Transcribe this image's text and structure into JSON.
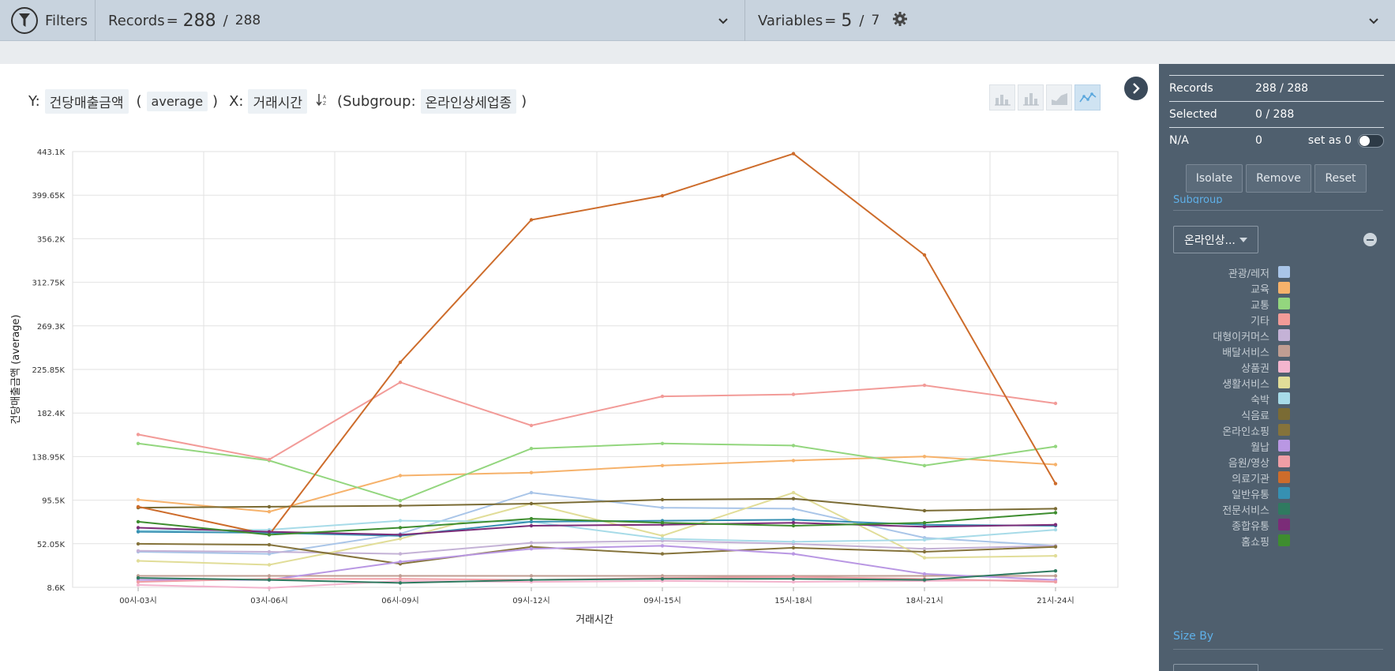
{
  "topbar": {
    "filters_label": "Filters",
    "records_label": "Records",
    "records_eq": "=",
    "records_current": "288",
    "records_slash": "/",
    "records_total": "288",
    "variables_label": "Variables",
    "variables_eq": "=",
    "variables_current": "5",
    "variables_slash": "/",
    "variables_total": "7"
  },
  "chart_header": {
    "y_prefix": "Y:",
    "y_variable": "건당매출금액",
    "open_paren": "(",
    "aggregation": "average",
    "close_paren": ")",
    "x_prefix": "X:",
    "x_variable": "거래시간",
    "subgroup_prefix": "(Subgroup:",
    "subgroup_variable": "온라인상세업종",
    "subgroup_close": ")"
  },
  "sidebar": {
    "records_label": "Records",
    "records_value": "288 / 288",
    "selected_label": "Selected",
    "selected_value": "0 / 288",
    "na_label": "N/A",
    "na_value": "0",
    "set_as_0_label": "set as 0",
    "isolate_label": "Isolate",
    "remove_label": "Remove",
    "reset_label": "Reset",
    "subgroup_title": "Subgroup",
    "subgroup_dropdown": "온라인상...",
    "size_by_label": "Size By"
  },
  "chart_data": {
    "type": "line",
    "xlabel": "거래시간",
    "ylabel": "건당매출금액 (average)",
    "categories": [
      "00시-03시",
      "03시-06시",
      "06시-09시",
      "09시-12시",
      "09시-15시",
      "15시-18시",
      "18시-21시",
      "21시-24시"
    ],
    "yticks": [
      "8.6K",
      "52.05K",
      "95.5K",
      "138.95K",
      "182.4K",
      "225.85K",
      "269.3K",
      "312.75K",
      "356.2K",
      "399.65K",
      "443.1K"
    ],
    "ylim": [
      8.6,
      443.1
    ],
    "grid": true,
    "series": [
      {
        "name": "관광/레저",
        "color": "#a9c5e8",
        "values": [
          44,
          42,
          62,
          103,
          88,
          87,
          58,
          50
        ]
      },
      {
        "name": "교육",
        "color": "#f6b26b",
        "values": [
          96,
          84,
          120,
          123,
          130,
          135,
          139,
          131
        ]
      },
      {
        "name": "교통",
        "color": "#93d67e",
        "values": [
          152,
          135,
          95,
          147,
          152,
          150,
          130,
          149
        ]
      },
      {
        "name": "기타",
        "color": "#f29b98",
        "values": [
          161,
          136,
          213,
          170,
          199,
          201,
          210,
          192
        ]
      },
      {
        "name": "대형이커머스",
        "color": "#c4b2d6",
        "values": [
          45,
          44,
          42,
          53,
          55,
          52,
          47,
          50
        ]
      },
      {
        "name": "배달서비스",
        "color": "#c09d92",
        "values": [
          20,
          20,
          20,
          20,
          20,
          20,
          20,
          20
        ]
      },
      {
        "name": "상품권",
        "color": "#f3b5ce",
        "values": [
          11,
          8,
          15,
          14,
          15,
          14,
          15,
          16
        ]
      },
      {
        "name": "생활서비스",
        "color": "#e1dd98",
        "values": [
          35,
          31,
          57,
          92,
          60,
          103,
          38,
          40
        ]
      },
      {
        "name": "숙박",
        "color": "#a7dbe8",
        "values": [
          65,
          66,
          75,
          74,
          57,
          54,
          56,
          66
        ]
      },
      {
        "name": "식음료",
        "color": "#7a6b34",
        "values": [
          88,
          89,
          90,
          92,
          96,
          97,
          85,
          87
        ]
      },
      {
        "name": "온라인쇼핑",
        "color": "#85733b",
        "values": [
          52,
          51,
          32,
          49,
          42,
          48,
          44,
          49
        ]
      },
      {
        "name": "월납",
        "color": "#b997e3",
        "values": [
          16,
          16,
          34,
          47,
          50,
          42,
          22,
          16
        ]
      },
      {
        "name": "음원/영상",
        "color": "#ef9ea6",
        "values": [
          14,
          17,
          17,
          16,
          18,
          19,
          17,
          14
        ]
      },
      {
        "name": "의료기관",
        "color": "#cd6c2b",
        "values": [
          89,
          61,
          233,
          375,
          399,
          441,
          340,
          112
        ]
      },
      {
        "name": "일반유통",
        "color": "#3690b2",
        "values": [
          64,
          63,
          60,
          74,
          75,
          76,
          71,
          70
        ]
      },
      {
        "name": "전문서비스",
        "color": "#2f7a60",
        "values": [
          18,
          16,
          13,
          16,
          17,
          17,
          16,
          25
        ]
      },
      {
        "name": "종합유통",
        "color": "#7b2c78",
        "values": [
          68,
          64,
          61,
          70,
          71,
          73,
          69,
          71
        ]
      },
      {
        "name": "홈쇼핑",
        "color": "#3e8d2f",
        "values": [
          74,
          61,
          68,
          77,
          73,
          70,
          73,
          83
        ]
      }
    ]
  }
}
